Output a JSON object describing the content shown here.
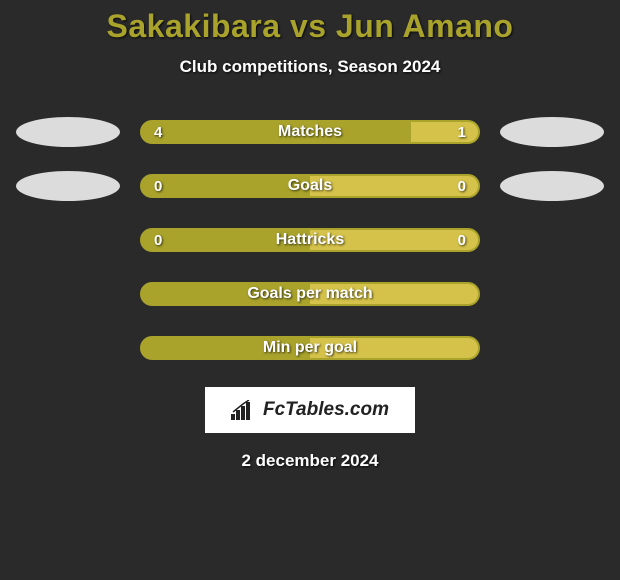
{
  "title": {
    "player_left": "Sakakibara",
    "vs": " vs ",
    "player_right": "Jun Amano",
    "color": "#a9a32c"
  },
  "subtitle": "Club competitions, Season 2024",
  "colors": {
    "left": "#a9a32c",
    "right": "#d4c24a",
    "bar_border": "#a9a32c",
    "background": "#2a2a2a"
  },
  "rows": [
    {
      "label": "Matches",
      "left_val": "4",
      "right_val": "1",
      "left_pct": 80,
      "right_pct": 20,
      "show_avatars": true
    },
    {
      "label": "Goals",
      "left_val": "0",
      "right_val": "0",
      "left_pct": 50,
      "right_pct": 50,
      "show_avatars": true
    },
    {
      "label": "Hattricks",
      "left_val": "0",
      "right_val": "0",
      "left_pct": 50,
      "right_pct": 50,
      "show_avatars": false
    },
    {
      "label": "Goals per match",
      "left_val": "",
      "right_val": "",
      "left_pct": 50,
      "right_pct": 50,
      "show_avatars": false
    },
    {
      "label": "Min per goal",
      "left_val": "",
      "right_val": "",
      "left_pct": 50,
      "right_pct": 50,
      "show_avatars": false
    }
  ],
  "badge": {
    "text": "FcTables.com"
  },
  "date": "2 december 2024"
}
